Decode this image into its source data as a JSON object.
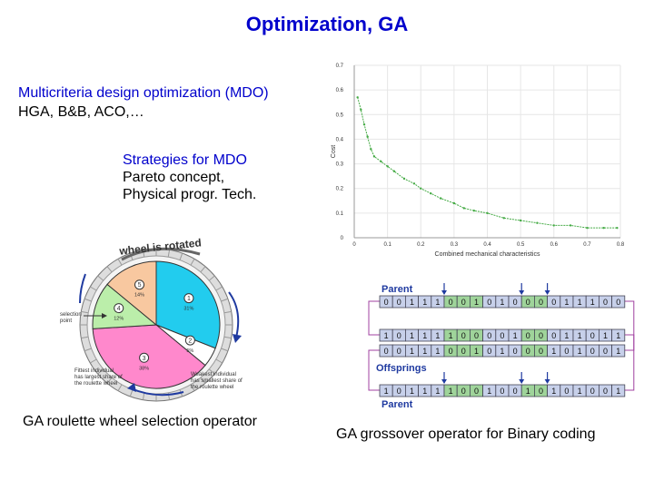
{
  "slide": {
    "title": "Optimization, GA",
    "mdo_line1": "Multicriteria design optimization (MDO)",
    "mdo_line2": "HGA, B&B, ACO,…",
    "strategies_title": "Strategies for MDO",
    "strategies_line1": "Pareto concept,",
    "strategies_line2": "Physical progr. Tech.",
    "caption_roulette": "GA roulette wheel selection operator",
    "caption_crossover": "GA grossover operator for Binary coding"
  },
  "chart_data": {
    "type": "scatter",
    "title": "",
    "xlabel": "Combined mechanical characteristics",
    "ylabel": "Cost",
    "xlim": [
      0,
      0.8
    ],
    "ylim": [
      0,
      0.7
    ],
    "xticks": [
      "0",
      "0.1",
      "0.2",
      "0.3",
      "0.4",
      "0.5",
      "0.6",
      "0.7",
      "0.8"
    ],
    "yticks": [
      "0",
      "0.1",
      "0.2",
      "0.3",
      "0.4",
      "0.5",
      "0.6",
      "0.7"
    ],
    "grid": true,
    "series": [
      {
        "color": "#44aa44",
        "x": [
          0.01,
          0.02,
          0.03,
          0.04,
          0.05,
          0.06,
          0.08,
          0.1,
          0.12,
          0.15,
          0.18,
          0.2,
          0.23,
          0.26,
          0.3,
          0.33,
          0.36,
          0.4,
          0.45,
          0.5,
          0.55,
          0.6,
          0.65,
          0.7,
          0.75,
          0.79
        ],
        "y": [
          0.57,
          0.52,
          0.46,
          0.41,
          0.36,
          0.33,
          0.31,
          0.29,
          0.27,
          0.24,
          0.22,
          0.2,
          0.18,
          0.16,
          0.14,
          0.12,
          0.11,
          0.1,
          0.08,
          0.07,
          0.06,
          0.05,
          0.05,
          0.04,
          0.04,
          0.04
        ]
      }
    ]
  },
  "roulette": {
    "banner": "wheel is rotated",
    "slices": [
      {
        "id": "1",
        "label": "31%",
        "value": 31,
        "color": "#22ccee"
      },
      {
        "id": "2",
        "label": "5%",
        "value": 5,
        "color": "#ffffff"
      },
      {
        "id": "3",
        "label": "38%",
        "value": 38,
        "color": "#ff88cc"
      },
      {
        "id": "4",
        "label": "12%",
        "value": 12,
        "color": "#bbeeaa"
      },
      {
        "id": "5",
        "label": "14%",
        "value": 14,
        "color": "#f8c8a0"
      }
    ],
    "selection_point": "selection\npoint",
    "fittest_note": "Fittest individual\nhas largest share of\nthe roulette wheel",
    "weakest_note": "Weakest individual\nhas smallest share of\nthe roulette wheel"
  },
  "crossover": {
    "parent_top_label": "Parent",
    "offsprings_label": "Offsprings",
    "parent_bottom_label": "Parent",
    "rows": [
      "0011100101000011100",
      "1011110000100011011",
      "0011100101000101001",
      "1011110010010101001"
    ],
    "highlight_ranges": [
      [
        5,
        8
      ],
      [
        11,
        13
      ]
    ]
  }
}
